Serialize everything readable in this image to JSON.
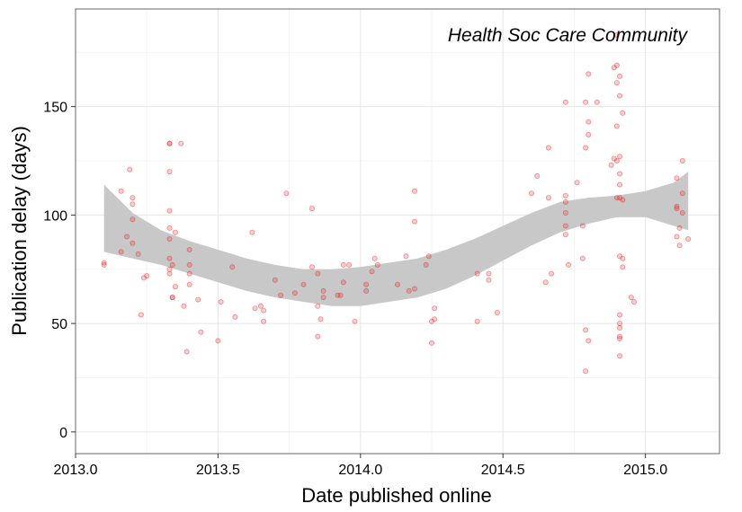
{
  "chart_data": {
    "type": "scatter",
    "title": "Health Soc Care Community",
    "xlabel": "Date published online",
    "ylabel": "Publication delay (days)",
    "xlim": [
      2013.0,
      2015.26
    ],
    "ylim": [
      -10,
      195
    ],
    "x_ticks": [
      2013.0,
      2013.5,
      2014.0,
      2014.5,
      2015.0
    ],
    "x_tick_labels": [
      "2013.0",
      "2013.5",
      "2014.0",
      "2014.5",
      "2015.0"
    ],
    "y_ticks": [
      0,
      50,
      100,
      150
    ],
    "y_tick_labels": [
      "0",
      "50",
      "100",
      "150"
    ],
    "grid": true,
    "point_color": "#e31a1c",
    "band_color": "#c8c8c8",
    "points": [
      [
        2013.1,
        77
      ],
      [
        2013.1,
        78
      ],
      [
        2013.16,
        111
      ],
      [
        2013.16,
        83
      ],
      [
        2013.18,
        90
      ],
      [
        2013.19,
        121
      ],
      [
        2013.2,
        108
      ],
      [
        2013.2,
        105
      ],
      [
        2013.2,
        98
      ],
      [
        2013.2,
        87
      ],
      [
        2013.22,
        82
      ],
      [
        2013.23,
        54
      ],
      [
        2013.24,
        71
      ],
      [
        2013.25,
        72
      ],
      [
        2013.33,
        133
      ],
      [
        2013.33,
        133
      ],
      [
        2013.33,
        120
      ],
      [
        2013.33,
        102
      ],
      [
        2013.33,
        94
      ],
      [
        2013.33,
        89
      ],
      [
        2013.33,
        80
      ],
      [
        2013.33,
        75
      ],
      [
        2013.33,
        73
      ],
      [
        2013.34,
        77
      ],
      [
        2013.34,
        62
      ],
      [
        2013.34,
        62
      ],
      [
        2013.35,
        92
      ],
      [
        2013.35,
        67
      ],
      [
        2013.37,
        133
      ],
      [
        2013.38,
        58
      ],
      [
        2013.39,
        37
      ],
      [
        2013.4,
        84
      ],
      [
        2013.4,
        77
      ],
      [
        2013.4,
        73
      ],
      [
        2013.4,
        68
      ],
      [
        2013.43,
        61
      ],
      [
        2013.44,
        46
      ],
      [
        2013.5,
        42
      ],
      [
        2013.51,
        60
      ],
      [
        2013.55,
        76
      ],
      [
        2013.56,
        53
      ],
      [
        2013.62,
        92
      ],
      [
        2013.63,
        57
      ],
      [
        2013.65,
        58
      ],
      [
        2013.66,
        56
      ],
      [
        2013.66,
        51
      ],
      [
        2013.7,
        70
      ],
      [
        2013.72,
        63
      ],
      [
        2013.74,
        110
      ],
      [
        2013.77,
        64
      ],
      [
        2013.8,
        68
      ],
      [
        2013.83,
        103
      ],
      [
        2013.83,
        76
      ],
      [
        2013.85,
        73
      ],
      [
        2013.85,
        58
      ],
      [
        2013.85,
        44
      ],
      [
        2013.86,
        52
      ],
      [
        2013.87,
        65
      ],
      [
        2013.87,
        62
      ],
      [
        2013.92,
        63
      ],
      [
        2013.93,
        63
      ],
      [
        2013.94,
        77
      ],
      [
        2013.94,
        69
      ],
      [
        2013.96,
        77
      ],
      [
        2013.98,
        51
      ],
      [
        2014.02,
        68
      ],
      [
        2014.02,
        65
      ],
      [
        2014.04,
        74
      ],
      [
        2014.05,
        80
      ],
      [
        2014.06,
        77
      ],
      [
        2014.13,
        68
      ],
      [
        2014.16,
        81
      ],
      [
        2014.17,
        65
      ],
      [
        2014.19,
        111
      ],
      [
        2014.19,
        97
      ],
      [
        2014.19,
        66
      ],
      [
        2014.23,
        77
      ],
      [
        2014.24,
        81
      ],
      [
        2014.25,
        51
      ],
      [
        2014.25,
        41
      ],
      [
        2014.26,
        57
      ],
      [
        2014.26,
        52
      ],
      [
        2014.41,
        73
      ],
      [
        2014.41,
        51
      ],
      [
        2014.45,
        73
      ],
      [
        2014.45,
        70
      ],
      [
        2014.48,
        55
      ],
      [
        2014.6,
        110
      ],
      [
        2014.62,
        118
      ],
      [
        2014.65,
        69
      ],
      [
        2014.66,
        131
      ],
      [
        2014.66,
        108
      ],
      [
        2014.67,
        73
      ],
      [
        2014.72,
        152
      ],
      [
        2014.72,
        109
      ],
      [
        2014.72,
        106
      ],
      [
        2014.72,
        101
      ],
      [
        2014.72,
        95
      ],
      [
        2014.72,
        91
      ],
      [
        2014.73,
        77
      ],
      [
        2014.76,
        115
      ],
      [
        2014.78,
        95
      ],
      [
        2014.78,
        80
      ],
      [
        2014.79,
        152
      ],
      [
        2014.79,
        131
      ],
      [
        2014.79,
        47
      ],
      [
        2014.79,
        28
      ],
      [
        2014.8,
        165
      ],
      [
        2014.8,
        143
      ],
      [
        2014.8,
        137
      ],
      [
        2014.8,
        42
      ],
      [
        2014.83,
        152
      ],
      [
        2014.88,
        123
      ],
      [
        2014.89,
        168
      ],
      [
        2014.89,
        126
      ],
      [
        2014.9,
        183
      ],
      [
        2014.9,
        169
      ],
      [
        2014.9,
        161
      ],
      [
        2014.9,
        141
      ],
      [
        2014.9,
        125
      ],
      [
        2014.9,
        108
      ],
      [
        2014.91,
        164
      ],
      [
        2014.91,
        155
      ],
      [
        2014.91,
        127
      ],
      [
        2014.91,
        119
      ],
      [
        2014.91,
        114
      ],
      [
        2014.91,
        108
      ],
      [
        2014.91,
        81
      ],
      [
        2014.91,
        54
      ],
      [
        2014.91,
        50
      ],
      [
        2014.91,
        48
      ],
      [
        2014.91,
        44
      ],
      [
        2014.91,
        43
      ],
      [
        2014.91,
        35
      ],
      [
        2014.92,
        147
      ],
      [
        2014.92,
        107
      ],
      [
        2014.92,
        80
      ],
      [
        2014.92,
        76
      ],
      [
        2014.95,
        62
      ],
      [
        2014.96,
        60
      ],
      [
        2015.11,
        117
      ],
      [
        2015.11,
        104
      ],
      [
        2015.11,
        103
      ],
      [
        2015.11,
        90
      ],
      [
        2015.12,
        94
      ],
      [
        2015.12,
        86
      ],
      [
        2015.13,
        125
      ],
      [
        2015.13,
        110
      ],
      [
        2015.13,
        101
      ],
      [
        2015.15,
        89
      ]
    ],
    "smooth": {
      "x": [
        2013.1,
        2013.2,
        2013.3,
        2013.4,
        2013.5,
        2013.6,
        2013.7,
        2013.8,
        2013.9,
        2014.0,
        2014.1,
        2014.2,
        2014.3,
        2014.4,
        2014.5,
        2014.6,
        2014.7,
        2014.8,
        2014.9,
        2015.0,
        2015.1,
        2015.15
      ],
      "upper": [
        114,
        101,
        93,
        88,
        84,
        80,
        77,
        75,
        75,
        76,
        78,
        80,
        84,
        89,
        95,
        101,
        106,
        108,
        109,
        111,
        115,
        120
      ],
      "lower": [
        83,
        80,
        77,
        73,
        69,
        65,
        62,
        60,
        58,
        58,
        60,
        62,
        66,
        72,
        79,
        86,
        92,
        96,
        99,
        99,
        95,
        93
      ]
    }
  }
}
